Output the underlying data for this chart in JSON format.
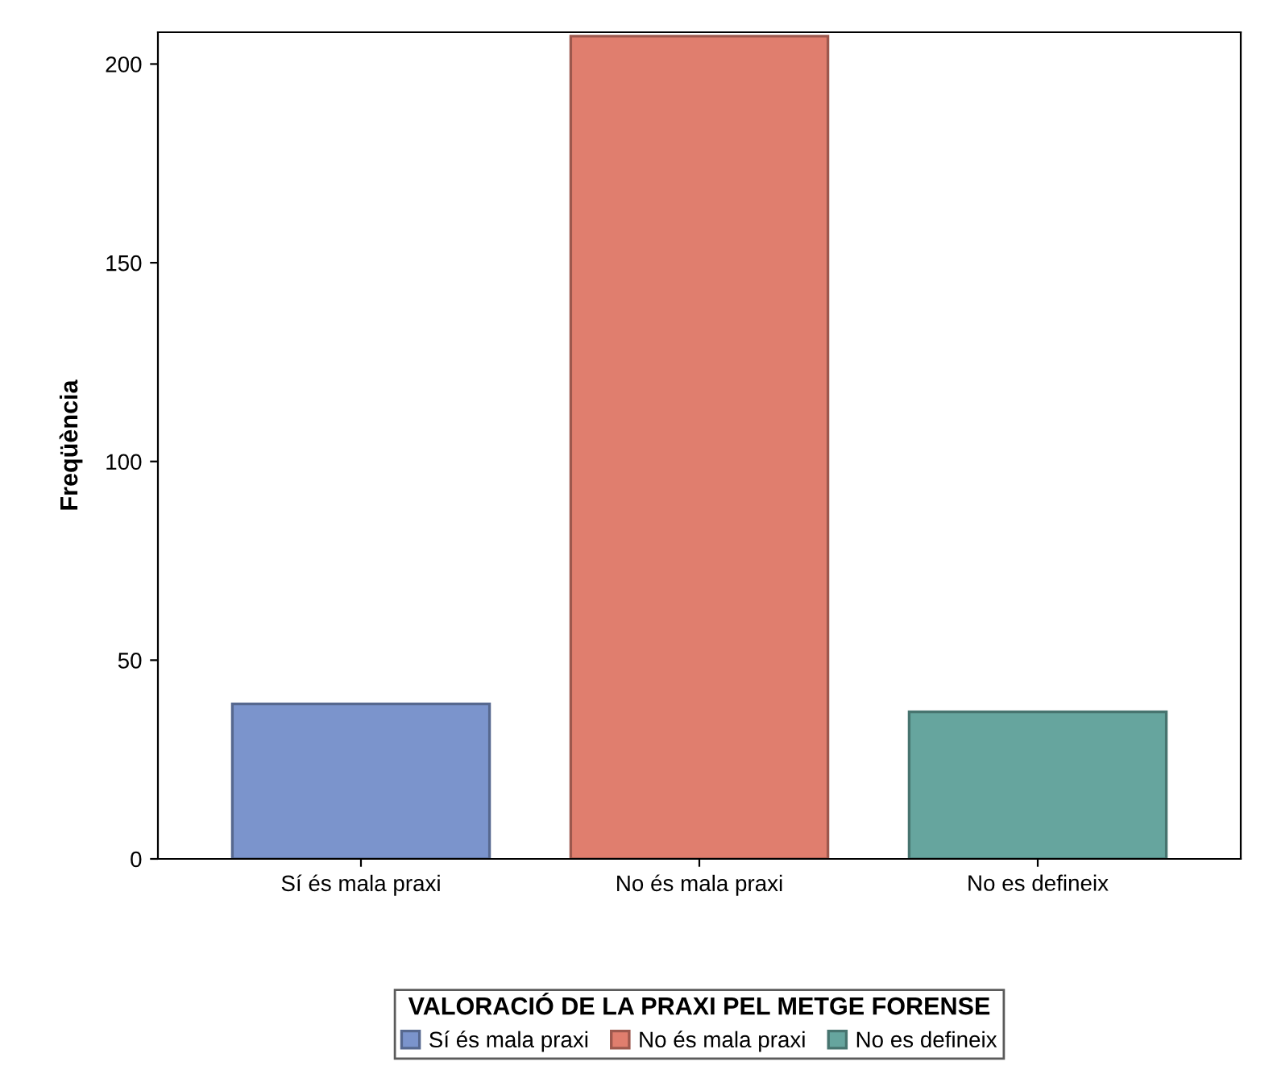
{
  "chart_data": {
    "type": "bar",
    "ylabel": "Freqüència",
    "legend_title": "VALORACIÓ DE LA PRAXI PEL METGE FORENSE",
    "categories": [
      "Sí és mala praxi",
      "No és mala praxi",
      "No es defineix"
    ],
    "stacked": true,
    "series": [
      {
        "name": "Sí és mala praxi",
        "color": "#7b94cc",
        "values": [
          39,
          null,
          null
        ]
      },
      {
        "name": "No és mala praxi",
        "color": "#e07e6e",
        "values": [
          null,
          207,
          null
        ]
      },
      {
        "name": "No es defineix",
        "color": "#66a59e",
        "values": [
          null,
          null,
          37
        ]
      }
    ],
    "ylim": [
      0,
      208
    ],
    "yticks": [
      0,
      50,
      100,
      150,
      200
    ],
    "grid": false,
    "legend": "bottom"
  }
}
